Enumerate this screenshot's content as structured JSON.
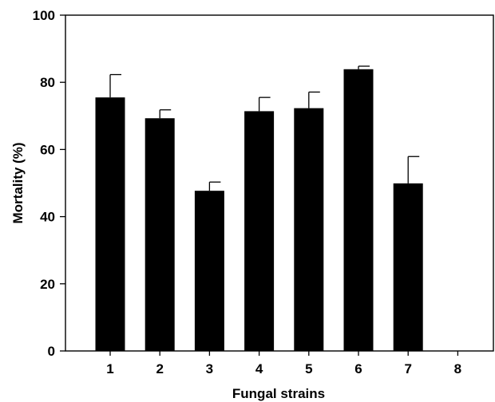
{
  "chart_data": {
    "type": "bar",
    "title": "",
    "xlabel": "Fungal strains",
    "ylabel": "Mortality (%)",
    "categories": [
      "1",
      "2",
      "3",
      "4",
      "5",
      "6",
      "7",
      "8"
    ],
    "series": [
      {
        "values": [
          75.5,
          69.3,
          47.7,
          71.4,
          72.3,
          83.9,
          49.9,
          0
        ],
        "error": [
          6.8,
          2.5,
          2.6,
          4.1,
          4.8,
          0.9,
          8.0,
          0
        ]
      }
    ],
    "ylim": [
      0,
      100
    ],
    "yticks": [
      "0",
      "20",
      "40",
      "60",
      "80",
      "100"
    ],
    "grid": false,
    "legend": "none",
    "colors": {
      "bar": "#000000",
      "axis": "#000000",
      "background": "#ffffff"
    }
  }
}
